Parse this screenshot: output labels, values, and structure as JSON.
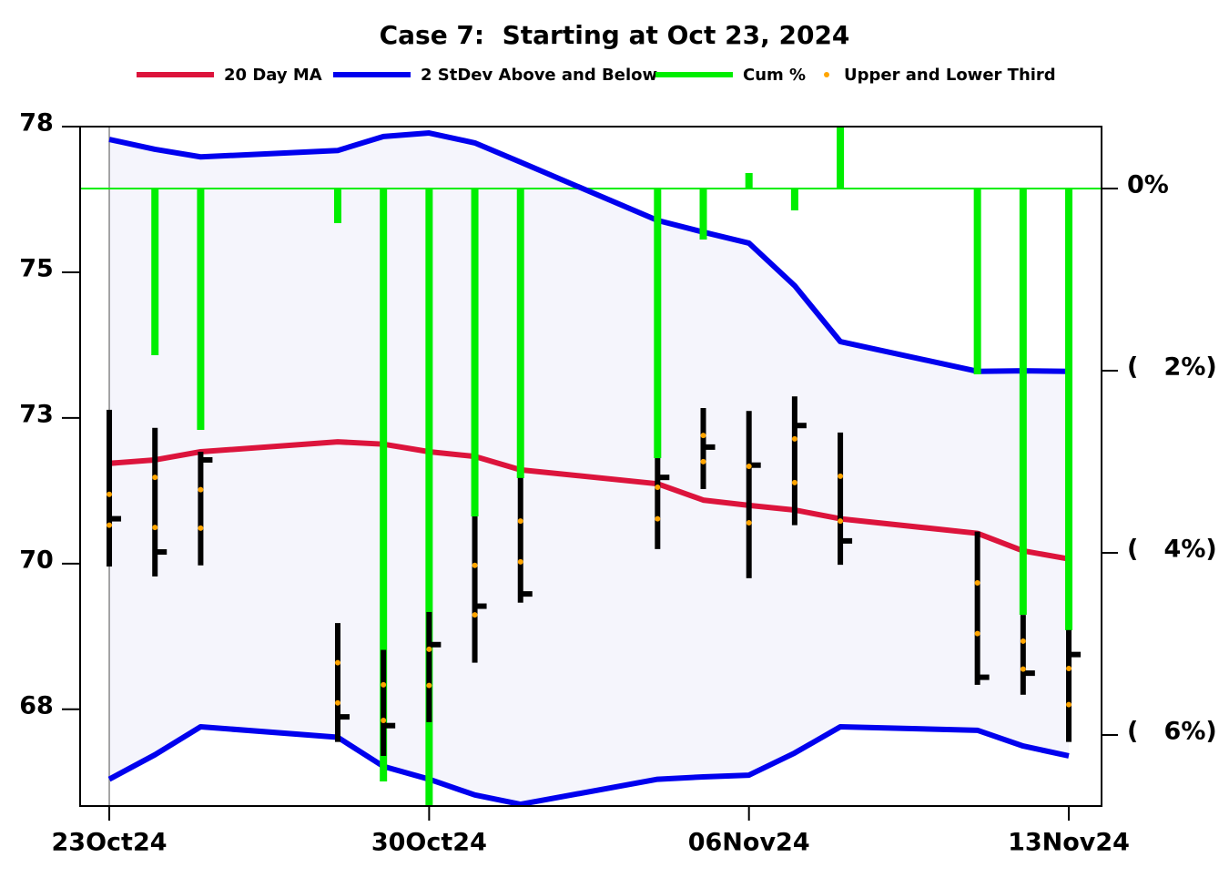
{
  "chart_data": {
    "type": "bollinger",
    "title": "Case 7:  Starting at Oct 23, 2024",
    "x": [
      "2024-10-23",
      "2024-10-24",
      "2024-10-25",
      "2024-10-28",
      "2024-10-29",
      "2024-10-30",
      "2024-10-31",
      "2024-11-01",
      "2024-11-04",
      "2024-11-05",
      "2024-11-06",
      "2024-11-07",
      "2024-11-08",
      "2024-11-11",
      "2024-11-12",
      "2024-11-13"
    ],
    "xlim": [
      "2024-10-22T08:41",
      "2024-11-13T17:12"
    ],
    "xticks": [
      {
        "value": "2024-10-23",
        "label": "23Oct24"
      },
      {
        "value": "2024-10-30",
        "label": "30Oct24"
      },
      {
        "value": "2024-11-06",
        "label": "06Nov24"
      },
      {
        "value": "2024-11-13",
        "label": "13Nov24"
      }
    ],
    "ylim": [
      66.14,
      77.8
    ],
    "yticks": [
      {
        "value": 77.8,
        "label": "78"
      },
      {
        "value": 75.3,
        "label": "75"
      },
      {
        "value": 72.8,
        "label": "73"
      },
      {
        "value": 70.3,
        "label": "70"
      },
      {
        "value": 67.8,
        "label": "68"
      }
    ],
    "y2lim": [
      -6.78,
      0.68
    ],
    "y2ticks": [
      {
        "value": 0,
        "label": "0%"
      },
      {
        "value": -2,
        "label": "(   2%)"
      },
      {
        "value": -4,
        "label": "(   4%)"
      },
      {
        "value": -6,
        "label": "(   6%)"
      }
    ],
    "band_fill": "#f5f5fc",
    "series": [
      {
        "name": "20 Day MA",
        "color": "#dc143c",
        "values": [
          72.02,
          72.08,
          72.22,
          72.39,
          72.35,
          72.22,
          72.14,
          71.91,
          71.67,
          71.39,
          71.3,
          71.22,
          71.07,
          70.82,
          70.52,
          70.38
        ]
      },
      {
        "name": "2 StDev Above and Below",
        "color": "#0000ee",
        "upper": [
          77.58,
          77.41,
          77.28,
          77.39,
          77.63,
          77.69,
          77.52,
          77.19,
          76.19,
          75.99,
          75.8,
          75.07,
          74.11,
          73.6,
          73.61,
          73.6
        ],
        "lower": [
          66.6,
          67.02,
          67.5,
          67.32,
          66.82,
          66.6,
          66.33,
          66.17,
          66.6,
          66.64,
          66.67,
          67.05,
          67.5,
          67.44,
          67.17,
          67.0
        ]
      },
      {
        "name": "Cum %",
        "color": "#00ee00",
        "axis": "y2",
        "values": [
          0,
          -1.83,
          -2.65,
          -0.38,
          -6.51,
          -6.78,
          -3.6,
          -3.18,
          -2.96,
          -0.56,
          0.17,
          -0.24,
          0.68,
          -2.04,
          -4.68,
          -4.85
        ]
      },
      {
        "name": "Upper and Lower Third",
        "color": "#ffa500",
        "upper": [
          71.49,
          71.78,
          71.57,
          68.6,
          68.22,
          68.83,
          70.27,
          71.03,
          71.61,
          72.5,
          71.97,
          72.44,
          71.8,
          69.97,
          68.97,
          68.5
        ],
        "lower": [
          70.96,
          70.92,
          70.91,
          67.91,
          67.61,
          68.21,
          69.42,
          70.33,
          71.07,
          72.05,
          71.0,
          71.69,
          71.03,
          69.1,
          68.49,
          67.88
        ]
      }
    ],
    "ohlc": {
      "color": "#000000",
      "high": [
        72.94,
        72.63,
        72.22,
        69.28,
        68.82,
        69.47,
        71.11,
        71.77,
        72.11,
        72.97,
        72.92,
        73.17,
        72.55,
        70.85,
        69.42,
        69.16
      ],
      "low": [
        70.25,
        70.08,
        70.27,
        67.24,
        67.0,
        67.58,
        68.6,
        69.63,
        70.55,
        71.58,
        70.05,
        70.96,
        70.28,
        68.22,
        68.05,
        67.24
      ],
      "close": [
        71.07,
        70.5,
        72.08,
        67.67,
        67.52,
        68.91,
        69.57,
        69.78,
        71.78,
        72.3,
        71.99,
        72.67,
        70.69,
        68.35,
        68.42,
        68.74
      ]
    }
  }
}
